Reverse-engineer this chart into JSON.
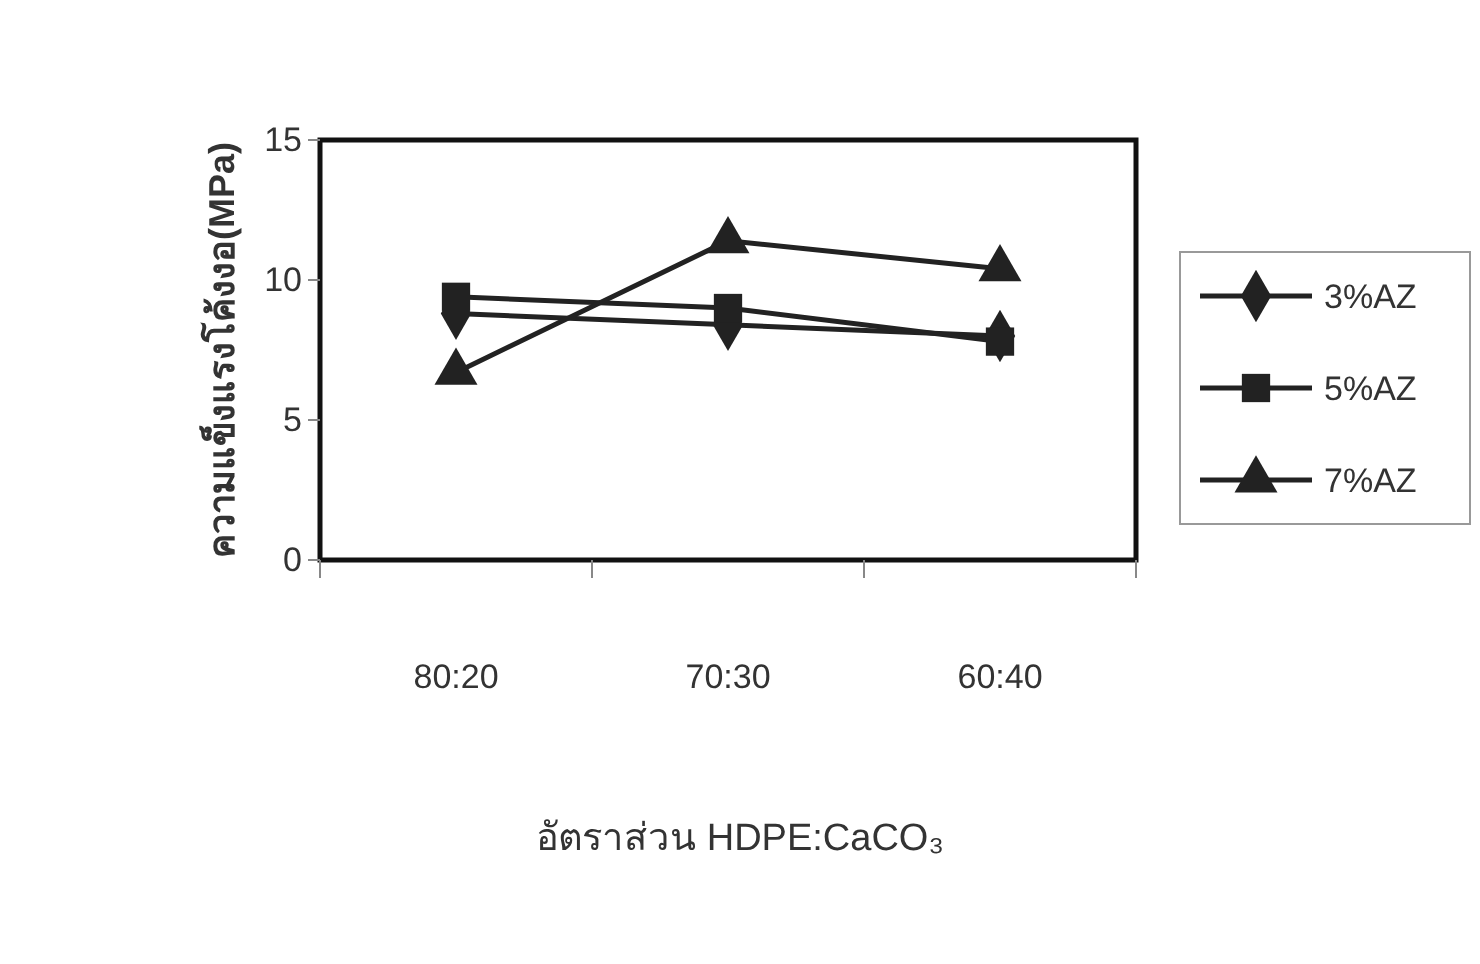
{
  "chart_data": {
    "type": "line",
    "xlabel": "อัตราส่วน HDPE:CaCO₃",
    "ylabel": "ความแข็งแรงโค้งงอ(MPa)",
    "categories": [
      "80:20",
      "70:30",
      "60:40"
    ],
    "series": [
      {
        "name": "3%AZ",
        "color": "#222222",
        "marker": "diamond",
        "values": [
          8.8,
          8.4,
          8.0
        ]
      },
      {
        "name": "5%AZ",
        "color": "#222222",
        "marker": "square",
        "values": [
          9.4,
          9.0,
          7.8
        ]
      },
      {
        "name": "7%AZ",
        "color": "#222222",
        "marker": "triangle",
        "values": [
          6.7,
          11.4,
          10.4
        ]
      }
    ],
    "ylim": [
      0,
      15
    ],
    "yticks": [
      0,
      5,
      10,
      15
    ],
    "grid": false,
    "legend": "right",
    "line_style": "solid"
  }
}
